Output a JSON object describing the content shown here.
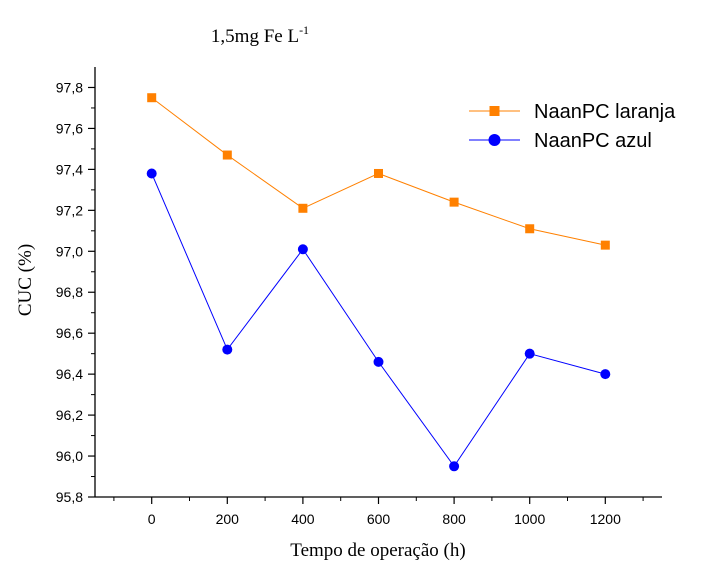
{
  "chart_data": {
    "type": "line",
    "title": "1,5mg Fe L",
    "title_superscript": "-1",
    "xlabel": "Tempo de operação (h)",
    "ylabel": "CUC (%)",
    "x": [
      0,
      200,
      400,
      600,
      800,
      1000,
      1200
    ],
    "xlim": [
      -150,
      1350
    ],
    "ylim": [
      95.8,
      97.9
    ],
    "xticks": [
      "0",
      "200",
      "400",
      "600",
      "800",
      "1000",
      "1200"
    ],
    "yticks": [
      {
        "value": 95.8,
        "label": "95,8"
      },
      {
        "value": 96.0,
        "label": "96,0"
      },
      {
        "value": 96.2,
        "label": "96,2"
      },
      {
        "value": 96.4,
        "label": "96,4"
      },
      {
        "value": 96.6,
        "label": "96,6"
      },
      {
        "value": 96.8,
        "label": "96,8"
      },
      {
        "value": 97.0,
        "label": "97,0"
      },
      {
        "value": 97.2,
        "label": "97,2"
      },
      {
        "value": 97.4,
        "label": "97,4"
      },
      {
        "value": 97.6,
        "label": "97,6"
      },
      {
        "value": 97.8,
        "label": "97,8"
      }
    ],
    "grid": false,
    "legend_position": "top-right",
    "series": [
      {
        "name": "NaanPC laranja",
        "color": "#FF8000",
        "marker": "square",
        "values": [
          97.75,
          97.47,
          97.21,
          97.38,
          97.24,
          97.11,
          97.03
        ]
      },
      {
        "name": "NaanPC azul",
        "color": "#0000FF",
        "marker": "circle",
        "values": [
          97.38,
          96.52,
          97.01,
          96.46,
          95.95,
          96.5,
          96.4
        ]
      }
    ]
  }
}
